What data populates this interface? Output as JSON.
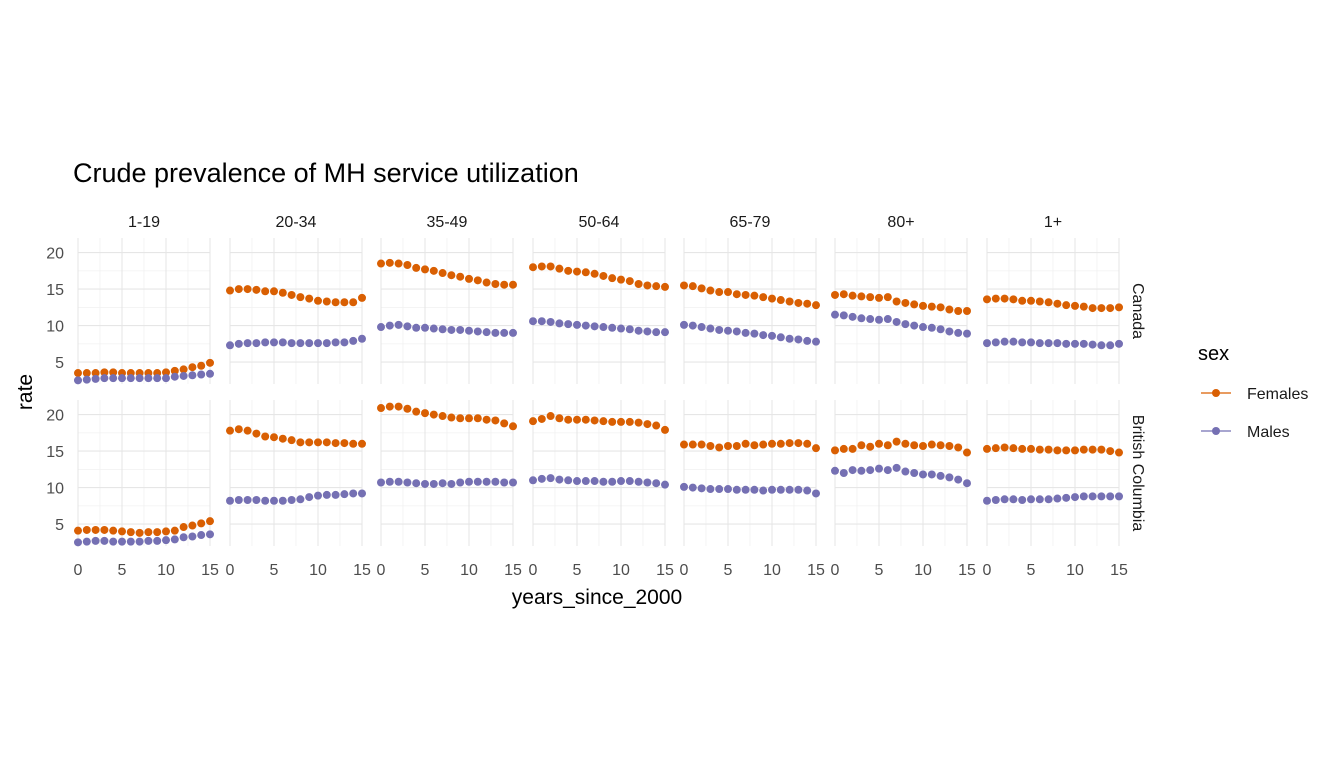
{
  "chart_data": {
    "type": "scatter",
    "title": "Crude prevalence of MH service utilization",
    "xlabel": "years_since_2000",
    "ylabel": "rate",
    "x": [
      0,
      1,
      2,
      3,
      4,
      5,
      6,
      7,
      8,
      9,
      10,
      11,
      12,
      13,
      14,
      15
    ],
    "xlim": [
      0,
      15
    ],
    "ylim": [
      2,
      22
    ],
    "x_ticks": [
      0,
      5,
      10,
      15
    ],
    "x_tick_labels": [
      "0",
      "5",
      "10",
      "15"
    ],
    "y_ticks": [
      5,
      10,
      15,
      20
    ],
    "y_tick_labels": [
      "5",
      "10",
      "15",
      "20"
    ],
    "grid": true,
    "legend": {
      "title": "sex",
      "position": "right",
      "entries": [
        {
          "label": "Females",
          "color": "#d95f02"
        },
        {
          "label": "Males",
          "color": "#7570b3"
        }
      ]
    },
    "facet_cols": [
      "1-19",
      "20-34",
      "35-49",
      "50-64",
      "65-79",
      "80+",
      "1+"
    ],
    "facet_rows": [
      "Canada",
      "British Columbia"
    ],
    "panels": [
      {
        "row": "Canada",
        "col": "1-19",
        "series": [
          {
            "name": "Females",
            "values": [
              3.5,
              3.5,
              3.5,
              3.6,
              3.6,
              3.5,
              3.5,
              3.5,
              3.5,
              3.5,
              3.6,
              3.8,
              4.0,
              4.3,
              4.5,
              4.9
            ]
          },
          {
            "name": "Males",
            "values": [
              2.5,
              2.6,
              2.7,
              2.8,
              2.8,
              2.8,
              2.8,
              2.8,
              2.8,
              2.8,
              2.8,
              3.0,
              3.1,
              3.2,
              3.3,
              3.4
            ]
          }
        ]
      },
      {
        "row": "Canada",
        "col": "20-34",
        "series": [
          {
            "name": "Females",
            "values": [
              14.8,
              15.0,
              15.0,
              14.9,
              14.7,
              14.7,
              14.5,
              14.2,
              13.9,
              13.7,
              13.4,
              13.3,
              13.2,
              13.2,
              13.2,
              13.8
            ]
          },
          {
            "name": "Males",
            "values": [
              7.3,
              7.5,
              7.6,
              7.6,
              7.7,
              7.7,
              7.7,
              7.6,
              7.6,
              7.6,
              7.6,
              7.6,
              7.7,
              7.7,
              7.9,
              8.2
            ]
          }
        ]
      },
      {
        "row": "Canada",
        "col": "35-49",
        "series": [
          {
            "name": "Females",
            "values": [
              18.5,
              18.6,
              18.5,
              18.3,
              17.9,
              17.7,
              17.5,
              17.2,
              16.9,
              16.7,
              16.4,
              16.2,
              15.9,
              15.7,
              15.6,
              15.6
            ]
          },
          {
            "name": "Males",
            "values": [
              9.8,
              10.0,
              10.1,
              9.9,
              9.7,
              9.7,
              9.6,
              9.5,
              9.4,
              9.4,
              9.3,
              9.2,
              9.1,
              9.0,
              9.0,
              9.0
            ]
          }
        ]
      },
      {
        "row": "Canada",
        "col": "50-64",
        "series": [
          {
            "name": "Females",
            "values": [
              18.0,
              18.1,
              18.1,
              17.8,
              17.5,
              17.4,
              17.3,
              17.1,
              16.8,
              16.5,
              16.3,
              16.1,
              15.7,
              15.5,
              15.4,
              15.3
            ]
          },
          {
            "name": "Males",
            "values": [
              10.6,
              10.6,
              10.5,
              10.3,
              10.2,
              10.1,
              10.0,
              9.9,
              9.8,
              9.7,
              9.6,
              9.5,
              9.3,
              9.2,
              9.1,
              9.1
            ]
          }
        ]
      },
      {
        "row": "Canada",
        "col": "65-79",
        "series": [
          {
            "name": "Females",
            "values": [
              15.5,
              15.4,
              15.1,
              14.8,
              14.6,
              14.6,
              14.3,
              14.2,
              14.1,
              13.9,
              13.7,
              13.5,
              13.3,
              13.1,
              13.0,
              12.8
            ]
          },
          {
            "name": "Males",
            "values": [
              10.1,
              10.0,
              9.8,
              9.6,
              9.4,
              9.3,
              9.2,
              9.0,
              8.9,
              8.7,
              8.6,
              8.4,
              8.2,
              8.1,
              7.9,
              7.8
            ]
          }
        ]
      },
      {
        "row": "Canada",
        "col": "80+",
        "series": [
          {
            "name": "Females",
            "values": [
              14.2,
              14.3,
              14.1,
              14.0,
              13.9,
              13.8,
              13.9,
              13.3,
              13.1,
              12.9,
              12.7,
              12.6,
              12.5,
              12.2,
              12.0,
              12.0
            ]
          },
          {
            "name": "Males",
            "values": [
              11.5,
              11.4,
              11.2,
              11.0,
              10.9,
              10.8,
              10.9,
              10.5,
              10.2,
              10.0,
              9.8,
              9.7,
              9.5,
              9.2,
              9.0,
              8.9
            ]
          }
        ]
      },
      {
        "row": "Canada",
        "col": "1+",
        "series": [
          {
            "name": "Females",
            "values": [
              13.6,
              13.7,
              13.7,
              13.6,
              13.4,
              13.4,
              13.3,
              13.2,
              13.0,
              12.8,
              12.7,
              12.6,
              12.4,
              12.4,
              12.4,
              12.5
            ]
          },
          {
            "name": "Males",
            "values": [
              7.6,
              7.7,
              7.8,
              7.8,
              7.7,
              7.7,
              7.6,
              7.6,
              7.6,
              7.5,
              7.5,
              7.5,
              7.4,
              7.3,
              7.3,
              7.5
            ]
          }
        ]
      },
      {
        "row": "British Columbia",
        "col": "1-19",
        "series": [
          {
            "name": "Females",
            "values": [
              4.1,
              4.2,
              4.2,
              4.2,
              4.1,
              4.0,
              3.9,
              3.8,
              3.9,
              3.9,
              4.0,
              4.1,
              4.6,
              4.8,
              5.1,
              5.4
            ]
          },
          {
            "name": "Males",
            "values": [
              2.5,
              2.6,
              2.7,
              2.7,
              2.6,
              2.6,
              2.6,
              2.6,
              2.7,
              2.7,
              2.8,
              2.9,
              3.2,
              3.3,
              3.5,
              3.6
            ]
          }
        ]
      },
      {
        "row": "British Columbia",
        "col": "20-34",
        "series": [
          {
            "name": "Females",
            "values": [
              17.8,
              18.0,
              17.8,
              17.4,
              17.0,
              16.9,
              16.7,
              16.5,
              16.2,
              16.2,
              16.2,
              16.2,
              16.1,
              16.1,
              16.0,
              16.0
            ]
          },
          {
            "name": "Males",
            "values": [
              8.2,
              8.3,
              8.3,
              8.3,
              8.2,
              8.2,
              8.2,
              8.3,
              8.4,
              8.7,
              8.9,
              9.0,
              9.0,
              9.1,
              9.2,
              9.2
            ]
          }
        ]
      },
      {
        "row": "British Columbia",
        "col": "35-49",
        "series": [
          {
            "name": "Females",
            "values": [
              20.9,
              21.1,
              21.1,
              20.8,
              20.4,
              20.2,
              20.0,
              19.8,
              19.6,
              19.5,
              19.5,
              19.5,
              19.3,
              19.2,
              18.8,
              18.4
            ]
          },
          {
            "name": "Males",
            "values": [
              10.7,
              10.8,
              10.8,
              10.7,
              10.6,
              10.5,
              10.5,
              10.6,
              10.5,
              10.7,
              10.8,
              10.8,
              10.8,
              10.8,
              10.7,
              10.7
            ]
          }
        ]
      },
      {
        "row": "British Columbia",
        "col": "50-64",
        "series": [
          {
            "name": "Females",
            "values": [
              19.1,
              19.4,
              19.8,
              19.5,
              19.3,
              19.3,
              19.3,
              19.2,
              19.1,
              19.0,
              19.0,
              19.0,
              18.9,
              18.7,
              18.5,
              17.9
            ]
          },
          {
            "name": "Males",
            "values": [
              11.0,
              11.2,
              11.3,
              11.1,
              11.0,
              10.9,
              10.9,
              10.9,
              10.8,
              10.8,
              10.9,
              10.9,
              10.8,
              10.7,
              10.6,
              10.4
            ]
          }
        ]
      },
      {
        "row": "British Columbia",
        "col": "65-79",
        "series": [
          {
            "name": "Females",
            "values": [
              15.9,
              15.9,
              15.9,
              15.7,
              15.5,
              15.7,
              15.7,
              16.0,
              15.8,
              15.9,
              16.0,
              16.0,
              16.1,
              16.1,
              16.0,
              15.4
            ]
          },
          {
            "name": "Males",
            "values": [
              10.1,
              10.0,
              9.9,
              9.8,
              9.8,
              9.8,
              9.7,
              9.7,
              9.7,
              9.6,
              9.7,
              9.7,
              9.7,
              9.7,
              9.6,
              9.2
            ]
          }
        ]
      },
      {
        "row": "British Columbia",
        "col": "80+",
        "series": [
          {
            "name": "Females",
            "values": [
              15.1,
              15.3,
              15.3,
              15.8,
              15.6,
              16.0,
              15.8,
              16.3,
              16.0,
              15.8,
              15.7,
              15.9,
              15.8,
              15.7,
              15.5,
              14.8
            ]
          },
          {
            "name": "Males",
            "values": [
              12.3,
              12.0,
              12.4,
              12.3,
              12.4,
              12.6,
              12.4,
              12.7,
              12.2,
              12.0,
              11.8,
              11.8,
              11.6,
              11.4,
              11.1,
              10.6
            ]
          }
        ]
      },
      {
        "row": "British Columbia",
        "col": "1+",
        "series": [
          {
            "name": "Females",
            "values": [
              15.3,
              15.4,
              15.5,
              15.4,
              15.3,
              15.3,
              15.2,
              15.2,
              15.1,
              15.1,
              15.1,
              15.2,
              15.2,
              15.2,
              15.0,
              14.8
            ]
          },
          {
            "name": "Males",
            "values": [
              8.2,
              8.3,
              8.4,
              8.4,
              8.3,
              8.4,
              8.4,
              8.4,
              8.5,
              8.6,
              8.7,
              8.8,
              8.8,
              8.8,
              8.8,
              8.8
            ]
          }
        ]
      }
    ]
  }
}
